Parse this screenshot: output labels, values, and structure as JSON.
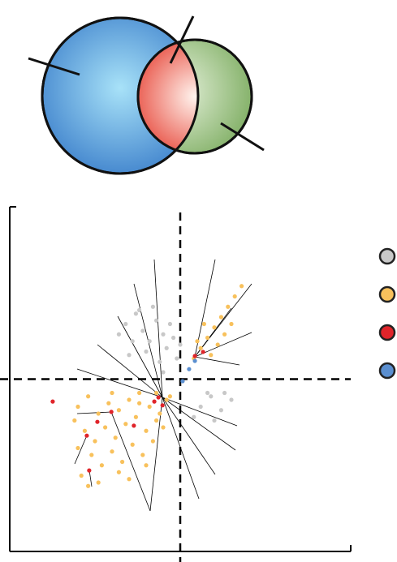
{
  "chart_data": {
    "type": "scatter",
    "xlim": [
      0,
      10
    ],
    "ylim": [
      0,
      10
    ],
    "reference_lines": {
      "x": 5,
      "y": 5
    },
    "series": [
      {
        "color": "#c8c8c8",
        "x": [
          3.4,
          3.7,
          3.9,
          4.1,
          4.3,
          4.5,
          4.6,
          4.8,
          4.9,
          3.6,
          3.2,
          4.0,
          4.4,
          4.7,
          3.8,
          4.2,
          5.0,
          5.6,
          5.9,
          6.2,
          6.5,
          5.4,
          6.0,
          5.8,
          6.3,
          4.5,
          3.5
        ],
        "values": [
          6.6,
          6.9,
          6.4,
          6.1,
          6.7,
          6.3,
          5.9,
          6.2,
          5.6,
          6.1,
          6.3,
          5.8,
          5.5,
          6.6,
          7.0,
          7.1,
          6.0,
          4.2,
          4.5,
          4.1,
          4.4,
          3.9,
          3.8,
          4.6,
          4.6,
          5.2,
          5.7
        ]
      },
      {
        "color": "#f8c15c",
        "x": [
          2.0,
          2.3,
          2.6,
          2.9,
          3.2,
          3.5,
          3.8,
          4.1,
          4.4,
          4.6,
          2.2,
          2.5,
          2.8,
          3.1,
          3.4,
          3.7,
          4.0,
          4.3,
          2.4,
          2.7,
          3.0,
          3.3,
          3.6,
          3.9,
          4.2,
          2.1,
          2.6,
          3.2,
          1.9,
          2.0,
          4.5,
          3.8,
          4.3,
          3.0,
          2.3,
          4.7,
          3.5,
          4.0,
          5.4,
          5.6,
          5.8,
          6.0,
          6.2,
          6.4,
          6.6,
          6.8,
          5.9,
          6.1,
          6.3,
          5.5,
          6.5,
          5.7
        ],
        "values": [
          4.2,
          4.5,
          4.0,
          4.3,
          4.1,
          4.4,
          4.6,
          4.2,
          4.0,
          4.4,
          3.5,
          3.2,
          3.6,
          3.3,
          3.7,
          3.9,
          3.5,
          3.8,
          2.8,
          2.5,
          2.9,
          2.6,
          3.1,
          2.8,
          3.2,
          2.2,
          2.0,
          2.3,
          3.8,
          3.0,
          3.6,
          4.3,
          4.6,
          4.6,
          1.9,
          4.5,
          2.1,
          2.5,
          5.6,
          5.9,
          6.2,
          6.5,
          6.8,
          7.1,
          7.4,
          7.7,
          5.7,
          6.0,
          6.3,
          6.1,
          6.6,
          6.6
        ]
      },
      {
        "color": "#e0242a",
        "x": [
          1.26,
          4.36,
          4.48,
          4.24,
          2.98,
          2.26,
          2.33,
          5.67,
          5.43,
          3.64,
          2.57
        ],
        "values": [
          4.35,
          4.47,
          4.24,
          4.35,
          4.05,
          3.36,
          2.35,
          5.79,
          5.67,
          3.65,
          3.76
        ]
      },
      {
        "color": "#5b8fd0",
        "x": [
          5.26,
          5.07,
          5.43
        ],
        "values": [
          5.29,
          4.94,
          5.53
        ]
      }
    ]
  }
}
